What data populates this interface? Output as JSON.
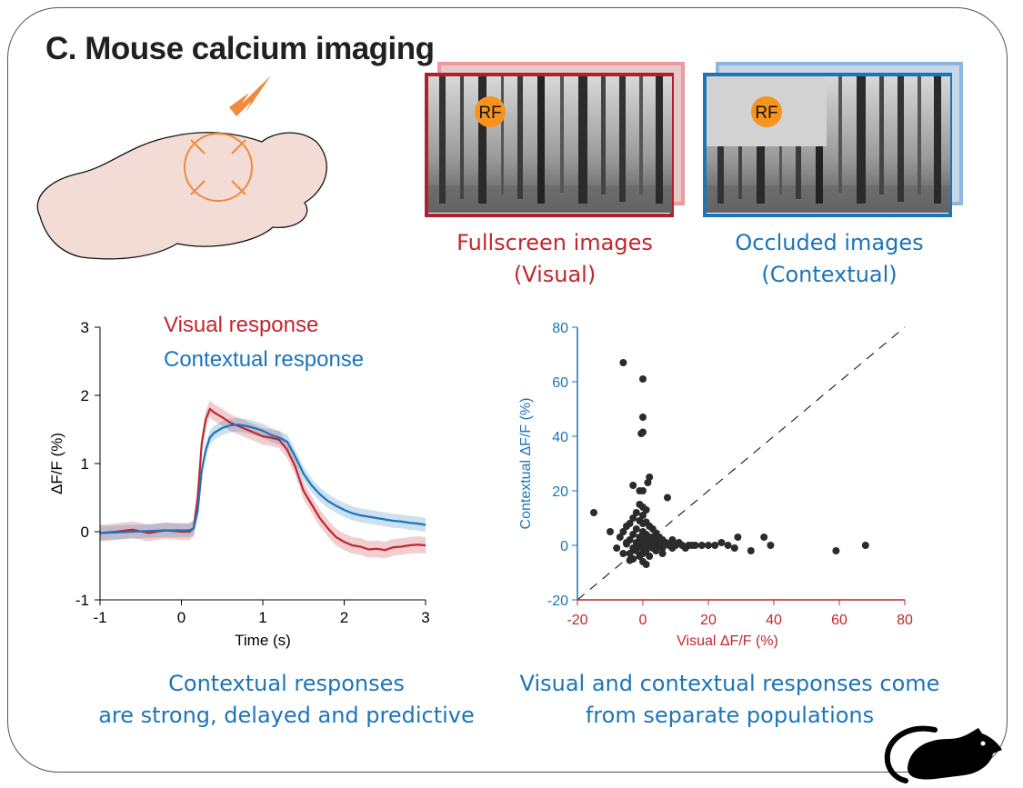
{
  "panel": {
    "title": "C. Mouse calcium imaging"
  },
  "stimuli": {
    "fullscreen": {
      "line1": "Fullscreen images",
      "line2": "(Visual)",
      "rf_label": "RF"
    },
    "occluded": {
      "line1": "Occluded images",
      "line2": "(Contextual)",
      "rf_label": "RF"
    }
  },
  "captions": {
    "left_line1": "Contextual responses",
    "left_line2": "are strong, delayed and predictive",
    "right_line1": "Visual and contextual responses come",
    "right_line2": "from separate populations"
  },
  "colors": {
    "visual": "#c1272d",
    "contextual": "#1b75bb",
    "arrow": "#f08a3c",
    "brain": "#f3dcd6",
    "rf": "#f7941d"
  },
  "icons": [
    "brain-diagram-icon",
    "arrow-icon",
    "mouse-silhouette-icon"
  ],
  "chart_data": [
    {
      "type": "line",
      "ylabel": "ΔF/F (%)",
      "xlabel": "Time (s)",
      "xlim": [
        -1,
        3
      ],
      "ylim": [
        -1,
        3
      ],
      "xticks": [
        "-1",
        "0",
        "1",
        "2",
        "3"
      ],
      "yticks": [
        "-1",
        "0",
        "1",
        "2",
        "3"
      ],
      "legend": [
        "Visual response",
        "Contextual response"
      ],
      "legend_position": "top",
      "series": [
        {
          "name": "Visual response",
          "color": "#c1272d",
          "x": [
            -1,
            -0.8,
            -0.6,
            -0.4,
            -0.2,
            0,
            0.1,
            0.15,
            0.2,
            0.25,
            0.3,
            0.35,
            0.4,
            0.5,
            0.6,
            0.7,
            0.8,
            0.9,
            1.0,
            1.1,
            1.2,
            1.3,
            1.4,
            1.5,
            1.6,
            1.7,
            1.8,
            1.9,
            2.0,
            2.1,
            2.2,
            2.3,
            2.4,
            2.5,
            2.6,
            2.7,
            2.8,
            2.9,
            3.0
          ],
          "y": [
            -0.02,
            0.0,
            0.03,
            -0.02,
            0.02,
            0.0,
            0.0,
            0.05,
            0.5,
            1.3,
            1.65,
            1.8,
            1.75,
            1.68,
            1.6,
            1.55,
            1.5,
            1.45,
            1.4,
            1.38,
            1.35,
            1.2,
            0.95,
            0.6,
            0.4,
            0.2,
            0.05,
            -0.08,
            -0.15,
            -0.2,
            -0.22,
            -0.26,
            -0.25,
            -0.27,
            -0.23,
            -0.22,
            -0.2,
            -0.19,
            -0.2
          ],
          "band": 0.12
        },
        {
          "name": "Contextual response",
          "color": "#1b75bb",
          "x": [
            -1,
            -0.8,
            -0.6,
            -0.4,
            -0.2,
            0,
            0.1,
            0.15,
            0.2,
            0.25,
            0.3,
            0.35,
            0.4,
            0.5,
            0.6,
            0.7,
            0.8,
            0.9,
            1.0,
            1.1,
            1.2,
            1.3,
            1.4,
            1.5,
            1.6,
            1.7,
            1.8,
            1.9,
            2.0,
            2.1,
            2.2,
            2.3,
            2.4,
            2.5,
            2.6,
            2.7,
            2.8,
            2.9,
            3.0
          ],
          "y": [
            -0.02,
            -0.01,
            0.0,
            0.01,
            0.02,
            0.02,
            0.02,
            0.05,
            0.3,
            0.9,
            1.2,
            1.38,
            1.45,
            1.52,
            1.56,
            1.57,
            1.55,
            1.52,
            1.48,
            1.42,
            1.38,
            1.32,
            1.1,
            0.85,
            0.68,
            0.55,
            0.45,
            0.38,
            0.32,
            0.27,
            0.24,
            0.22,
            0.2,
            0.18,
            0.16,
            0.15,
            0.13,
            0.12,
            0.1
          ],
          "band": 0.1
        }
      ]
    },
    {
      "type": "scatter",
      "xlabel": "Visual  ΔF/F (%)",
      "ylabel": "Contextual  ΔF/F (%)",
      "xlim": [
        -20,
        80
      ],
      "ylim": [
        -20,
        80
      ],
      "xticks": [
        "-20",
        "0",
        "20",
        "40",
        "60",
        "80"
      ],
      "yticks": [
        "-20",
        "0",
        "20",
        "40",
        "60",
        "80"
      ],
      "identity_line": true,
      "points": [
        [
          -6,
          67
        ],
        [
          0,
          61
        ],
        [
          0,
          47
        ],
        [
          0,
          41.5
        ],
        [
          -0.5,
          41
        ],
        [
          2,
          25
        ],
        [
          1.5,
          23
        ],
        [
          -3,
          22
        ],
        [
          0,
          20
        ],
        [
          -1,
          20
        ],
        [
          -15,
          12
        ],
        [
          7.5,
          17.5
        ],
        [
          -1,
          15
        ],
        [
          0,
          14
        ],
        [
          1,
          13
        ],
        [
          -2,
          12
        ],
        [
          0,
          11
        ],
        [
          -3,
          10
        ],
        [
          -1,
          9
        ],
        [
          1,
          8.5
        ],
        [
          -4,
          8
        ],
        [
          0,
          8
        ],
        [
          -5,
          7
        ],
        [
          2,
          7
        ],
        [
          -2,
          6
        ],
        [
          3,
          6
        ],
        [
          -6,
          5
        ],
        [
          0,
          5
        ],
        [
          -10,
          5
        ],
        [
          4,
          4.5
        ],
        [
          -3,
          4
        ],
        [
          1,
          4
        ],
        [
          -7,
          3
        ],
        [
          -1,
          3
        ],
        [
          2,
          3
        ],
        [
          5,
          3
        ],
        [
          -4,
          2
        ],
        [
          0,
          2
        ],
        [
          3,
          2
        ],
        [
          6,
          2
        ],
        [
          -2,
          1
        ],
        [
          1,
          1
        ],
        [
          4,
          1
        ],
        [
          7,
          1
        ],
        [
          -5,
          0.5
        ],
        [
          -1,
          0
        ],
        [
          2,
          0
        ],
        [
          5,
          0
        ],
        [
          8,
          0
        ],
        [
          10,
          0
        ],
        [
          12,
          0
        ],
        [
          14,
          0
        ],
        [
          16,
          0
        ],
        [
          -3,
          -1
        ],
        [
          0,
          -1
        ],
        [
          3,
          -1
        ],
        [
          6,
          -1
        ],
        [
          9,
          -1
        ],
        [
          -2,
          -2
        ],
        [
          1,
          -2
        ],
        [
          4,
          -2
        ],
        [
          -4,
          -3
        ],
        [
          0,
          -3
        ],
        [
          -1,
          -4
        ],
        [
          2,
          -4
        ],
        [
          -3,
          -5
        ],
        [
          0,
          -6
        ],
        [
          -4,
          -5.5
        ],
        [
          1,
          -7
        ],
        [
          -6,
          -3
        ],
        [
          20,
          0
        ],
        [
          22,
          0
        ],
        [
          24,
          1
        ],
        [
          18,
          0
        ],
        [
          26,
          0
        ],
        [
          29,
          3
        ],
        [
          28,
          -1
        ],
        [
          33,
          -2
        ],
        [
          37,
          3
        ],
        [
          39,
          0
        ],
        [
          59,
          -2
        ],
        [
          68,
          0
        ],
        [
          11,
          1
        ],
        [
          13,
          -1
        ],
        [
          15,
          0
        ],
        [
          -5,
          1
        ],
        [
          -8,
          -1
        ],
        [
          3,
          3
        ],
        [
          6,
          -3
        ],
        [
          9,
          2
        ]
      ]
    }
  ]
}
